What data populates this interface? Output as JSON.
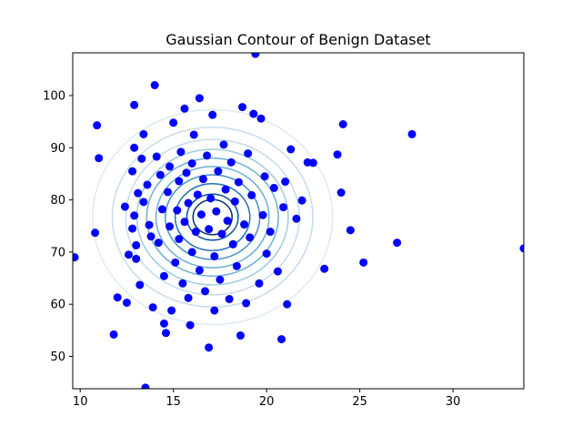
{
  "chart_data": {
    "type": "scatter",
    "title": "Gaussian Contour of Benign Dataset",
    "xlabel": "",
    "ylabel": "",
    "xlim": [
      9.6,
      33.8
    ],
    "ylim": [
      43.8,
      108.2
    ],
    "xticks": [
      10,
      15,
      20,
      25,
      30
    ],
    "yticks": [
      50,
      60,
      70,
      80,
      90,
      100
    ],
    "xtick_labels": [
      "10",
      "15",
      "20",
      "25",
      "30"
    ],
    "ytick_labels": [
      "50",
      "60",
      "70",
      "80",
      "90",
      "100"
    ],
    "grid": false,
    "point_color": "#0000ff",
    "contour": {
      "center": [
        17.1,
        76.7
      ],
      "sigma": [
        3.0,
        9.6
      ],
      "levels": [
        1.0,
        0.9,
        0.8,
        0.7,
        0.6,
        0.5,
        0.4,
        0.3,
        0.2,
        0.1
      ],
      "colors": [
        "#08306b",
        "#08519c",
        "#2171b5",
        "#4292c6",
        "#6baed6",
        "#6baed6",
        "#9ecae1",
        "#c6dbef",
        "#c6dbef",
        "#deebf7"
      ]
    },
    "series": [
      {
        "name": "benign",
        "points": [
          [
            9.7,
            69.0
          ],
          [
            10.8,
            73.7
          ],
          [
            10.9,
            94.3
          ],
          [
            11.0,
            88.0
          ],
          [
            11.8,
            54.2
          ],
          [
            12.0,
            61.3
          ],
          [
            12.4,
            78.7
          ],
          [
            12.5,
            60.3
          ],
          [
            12.6,
            69.5
          ],
          [
            12.8,
            74.5
          ],
          [
            12.8,
            85.5
          ],
          [
            12.9,
            98.2
          ],
          [
            12.9,
            77.0
          ],
          [
            12.9,
            90.0
          ],
          [
            13.0,
            68.7
          ],
          [
            13.0,
            71.3
          ],
          [
            13.1,
            81.3
          ],
          [
            13.2,
            63.7
          ],
          [
            13.3,
            87.9
          ],
          [
            13.4,
            92.6
          ],
          [
            13.4,
            79.6
          ],
          [
            13.5,
            44.0
          ],
          [
            13.6,
            82.9
          ],
          [
            13.7,
            75.2
          ],
          [
            13.8,
            73.0
          ],
          [
            13.9,
            59.4
          ],
          [
            14.0,
            102.0
          ],
          [
            14.1,
            88.3
          ],
          [
            14.2,
            71.8
          ],
          [
            14.3,
            84.8
          ],
          [
            14.4,
            78.2
          ],
          [
            14.5,
            65.4
          ],
          [
            14.5,
            56.3
          ],
          [
            14.6,
            54.5
          ],
          [
            14.7,
            81.5
          ],
          [
            14.8,
            86.4
          ],
          [
            14.8,
            74.9
          ],
          [
            14.9,
            58.8
          ],
          [
            15.0,
            94.8
          ],
          [
            15.1,
            68.0
          ],
          [
            15.2,
            78.0
          ],
          [
            15.3,
            72.5
          ],
          [
            15.3,
            83.6
          ],
          [
            15.4,
            89.2
          ],
          [
            15.5,
            64.0
          ],
          [
            15.6,
            97.5
          ],
          [
            15.6,
            75.8
          ],
          [
            15.7,
            85.2
          ],
          [
            15.8,
            61.2
          ],
          [
            15.8,
            79.4
          ],
          [
            15.9,
            56.0
          ],
          [
            16.0,
            70.0
          ],
          [
            16.0,
            87.0
          ],
          [
            16.1,
            92.5
          ],
          [
            16.2,
            73.9
          ],
          [
            16.3,
            81.0
          ],
          [
            16.4,
            66.5
          ],
          [
            16.4,
            99.5
          ],
          [
            16.5,
            77.2
          ],
          [
            16.6,
            84.0
          ],
          [
            16.7,
            62.5
          ],
          [
            16.8,
            88.5
          ],
          [
            16.9,
            51.7
          ],
          [
            16.9,
            74.4
          ],
          [
            17.0,
            80.3
          ],
          [
            17.1,
            96.3
          ],
          [
            17.2,
            58.8
          ],
          [
            17.2,
            69.2
          ],
          [
            17.3,
            77.8
          ],
          [
            17.4,
            85.5
          ],
          [
            17.5,
            64.7
          ],
          [
            17.6,
            73.5
          ],
          [
            17.7,
            90.6
          ],
          [
            17.8,
            82.0
          ],
          [
            17.9,
            76.0
          ],
          [
            18.0,
            61.0
          ],
          [
            18.1,
            87.2
          ],
          [
            18.2,
            71.5
          ],
          [
            18.3,
            79.7
          ],
          [
            18.4,
            67.3
          ],
          [
            18.5,
            83.4
          ],
          [
            18.6,
            54.0
          ],
          [
            18.7,
            97.8
          ],
          [
            18.8,
            75.3
          ],
          [
            18.9,
            60.2
          ],
          [
            19.0,
            88.9
          ],
          [
            19.1,
            72.8
          ],
          [
            19.2,
            80.9
          ],
          [
            19.3,
            96.5
          ],
          [
            19.4,
            108.0
          ],
          [
            19.6,
            64.0
          ],
          [
            19.7,
            95.6
          ],
          [
            19.8,
            77.1
          ],
          [
            19.9,
            84.5
          ],
          [
            20.0,
            69.7
          ],
          [
            20.2,
            73.9
          ],
          [
            20.4,
            82.3
          ],
          [
            20.6,
            66.3
          ],
          [
            20.8,
            53.3
          ],
          [
            20.9,
            78.6
          ],
          [
            21.0,
            83.5
          ],
          [
            21.1,
            60.0
          ],
          [
            21.3,
            89.7
          ],
          [
            21.6,
            76.4
          ],
          [
            21.9,
            79.9
          ],
          [
            22.2,
            87.2
          ],
          [
            22.5,
            87.1
          ],
          [
            23.1,
            66.8
          ],
          [
            23.8,
            88.7
          ],
          [
            24.0,
            81.4
          ],
          [
            24.1,
            94.5
          ],
          [
            24.5,
            74.2
          ],
          [
            25.2,
            68.0
          ],
          [
            27.0,
            71.8
          ],
          [
            27.8,
            92.6
          ],
          [
            33.8,
            70.7
          ]
        ]
      }
    ]
  }
}
